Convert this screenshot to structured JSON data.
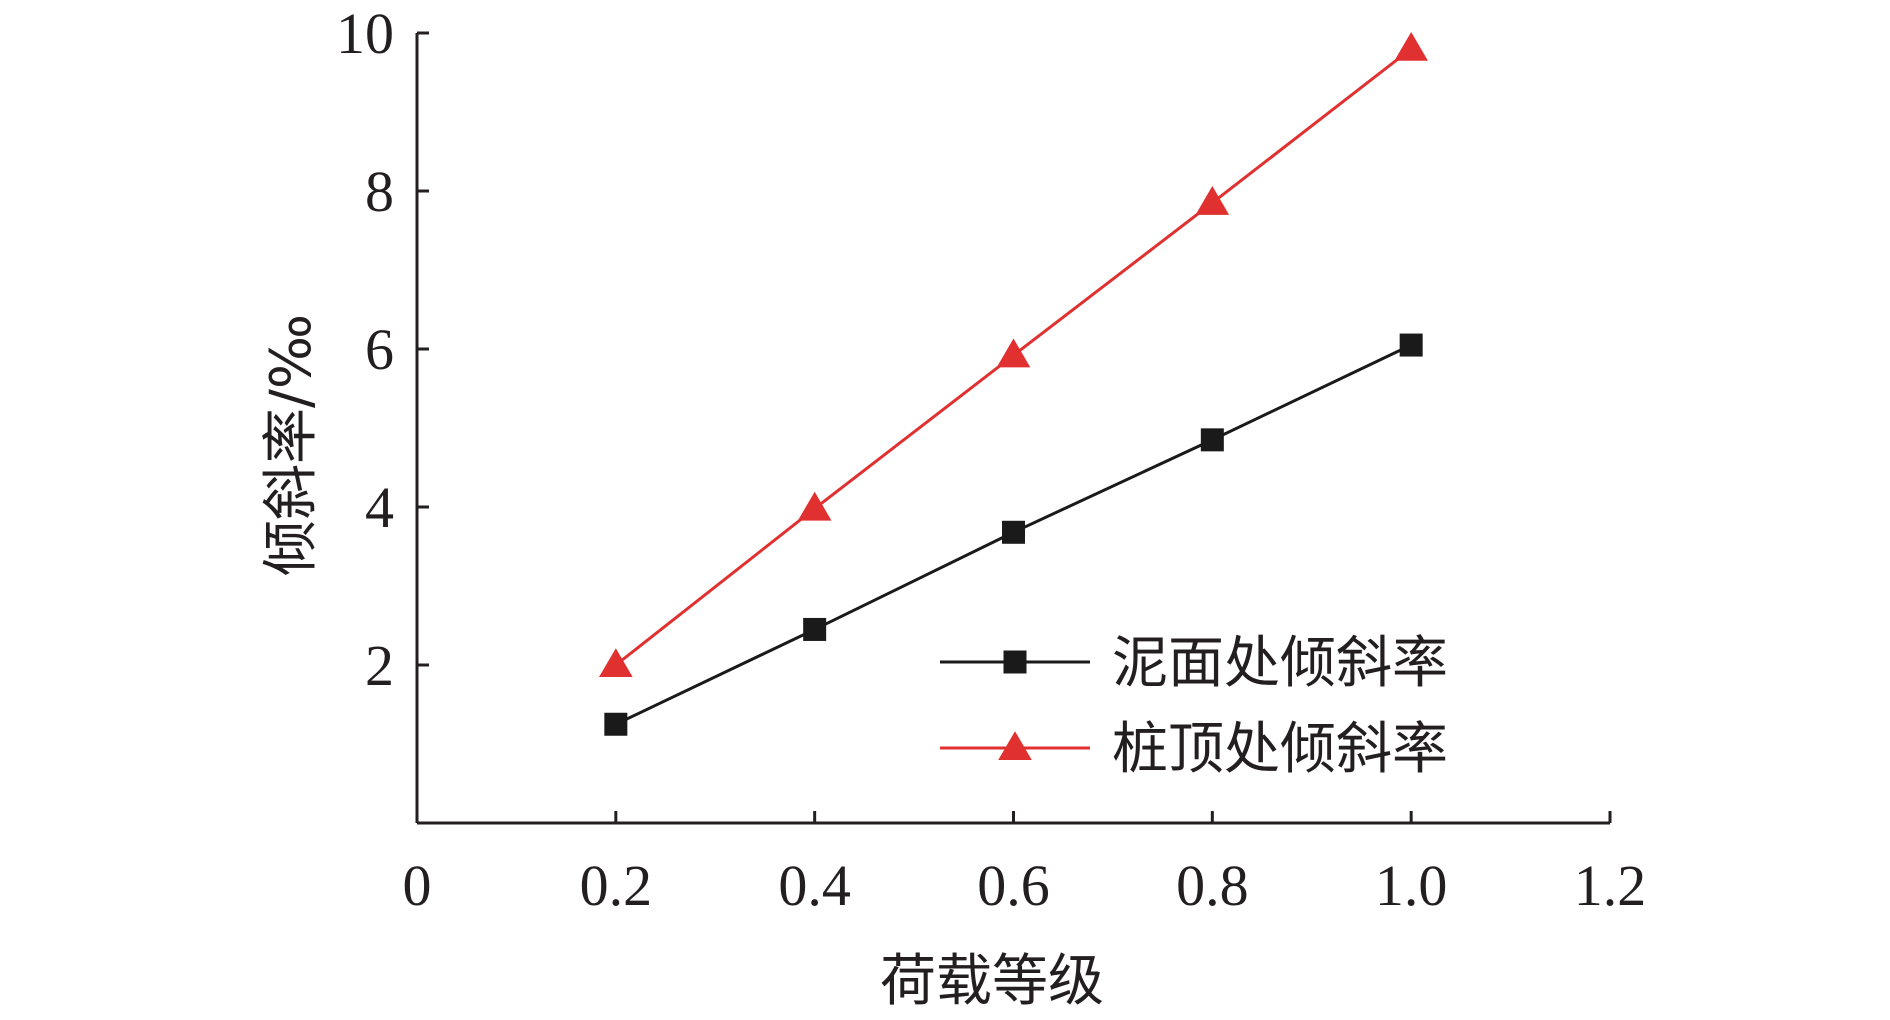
{
  "chart_data": {
    "type": "line",
    "xlabel": "荷载等级",
    "ylabel": "倾斜率/‰",
    "xlim": [
      0,
      1.2
    ],
    "ylim": [
      0,
      10
    ],
    "xticks": [
      "0",
      "0.2",
      "0.4",
      "0.6",
      "0.8",
      "1.0",
      "1.2"
    ],
    "yticks": [
      "2",
      "4",
      "6",
      "8",
      "10"
    ],
    "grid": false,
    "legend_position": "bottom-right",
    "series": [
      {
        "name": "泥面处倾斜率",
        "color": "#1a1a1a",
        "marker": "square",
        "x": [
          0.2,
          0.4,
          0.6,
          0.8,
          1.0
        ],
        "y": [
          1.25,
          2.45,
          3.68,
          4.85,
          6.05
        ]
      },
      {
        "name": "桩顶处倾斜率",
        "color": "#e03030",
        "marker": "triangle",
        "x": [
          0.2,
          0.4,
          0.6,
          0.8,
          1.0
        ],
        "y": [
          2.0,
          3.98,
          5.92,
          7.85,
          9.8
        ]
      }
    ]
  }
}
